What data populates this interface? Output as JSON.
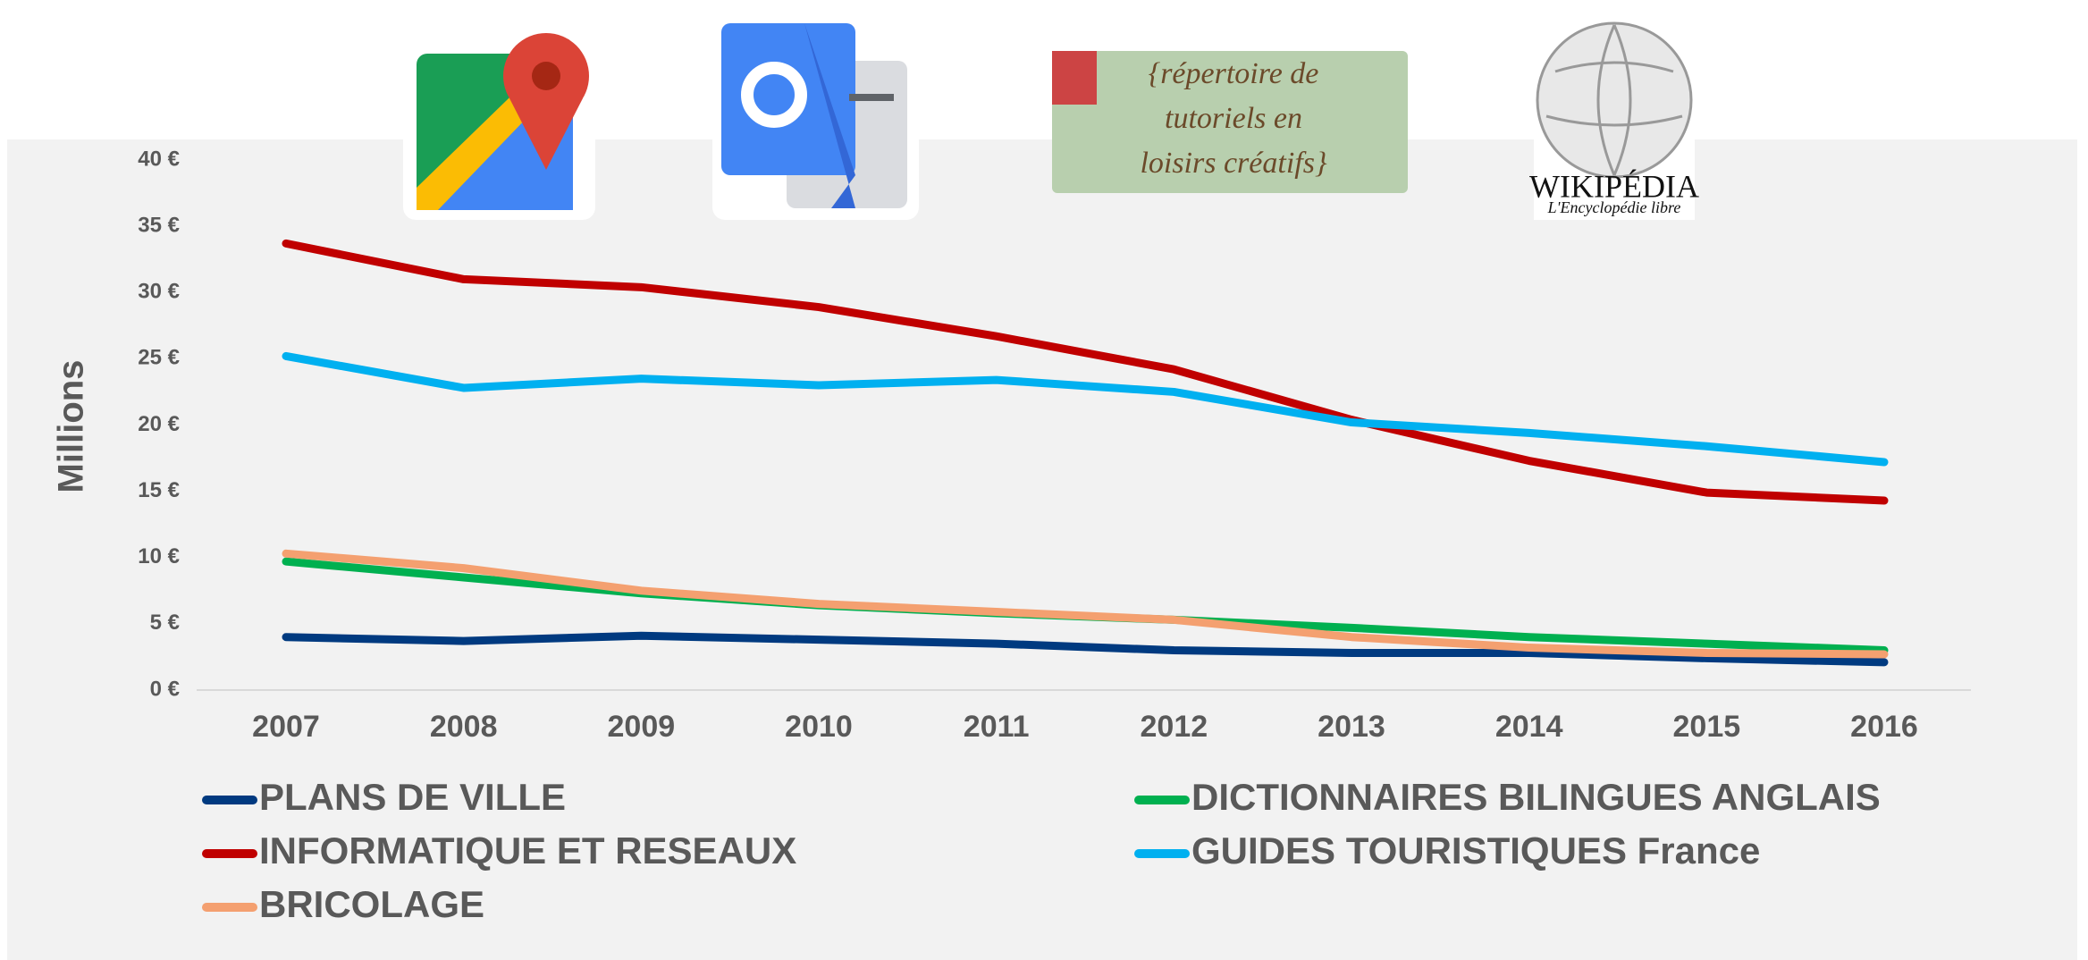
{
  "chart_data": {
    "type": "line",
    "y_label": "Millions",
    "categories": [
      "2007",
      "2008",
      "2009",
      "2010",
      "2011",
      "2012",
      "2013",
      "2014",
      "2015",
      "2016"
    ],
    "series": [
      {
        "name": "PLANS DE VILLE",
        "color": "#003a80",
        "values": [
          4.0,
          3.7,
          4.1,
          3.8,
          3.5,
          3.0,
          2.8,
          2.8,
          2.4,
          2.1
        ]
      },
      {
        "name": "DICTIONNAIRES BILINGUES ANGLAIS",
        "color": "#00b050",
        "values": [
          9.7,
          8.5,
          7.3,
          6.4,
          5.8,
          5.3,
          4.7,
          4.0,
          3.5,
          3.0
        ]
      },
      {
        "name": "INFORMATIQUE ET RESEAUX",
        "color": "#c00000",
        "values": [
          33.7,
          31.0,
          30.4,
          28.9,
          26.7,
          24.2,
          20.4,
          17.3,
          14.9,
          14.3
        ]
      },
      {
        "name": "GUIDES TOURISTIQUES France",
        "color": "#00b0f0",
        "values": [
          25.2,
          22.8,
          23.5,
          23.0,
          23.4,
          22.5,
          20.2,
          19.4,
          18.4,
          17.2
        ]
      },
      {
        "name": "BRICOLAGE",
        "color": "#f4a070",
        "values": [
          10.3,
          9.2,
          7.5,
          6.5,
          5.9,
          5.3,
          4.0,
          3.2,
          2.8,
          2.7
        ]
      }
    ],
    "ylim": [
      0,
      40
    ],
    "yticks": [
      {
        "value": 0,
        "label": "0 €"
      },
      {
        "value": 5,
        "label": "5 €"
      },
      {
        "value": 10,
        "label": "10 €"
      },
      {
        "value": 15,
        "label": "15 €"
      },
      {
        "value": 20,
        "label": "20 €"
      },
      {
        "value": 25,
        "label": "25 €"
      },
      {
        "value": 30,
        "label": "30 €"
      },
      {
        "value": 35,
        "label": "35 €"
      },
      {
        "value": 40,
        "label": "40 €"
      }
    ],
    "grid": false,
    "legend": "bottom",
    "annotations": {
      "tutorials": [
        "{répertoire de",
        "tutoriels en",
        "loisirs créatifs}"
      ],
      "wikipedia": [
        "WIKIPÉDIA",
        "L'Encyclopédie libre"
      ]
    }
  }
}
